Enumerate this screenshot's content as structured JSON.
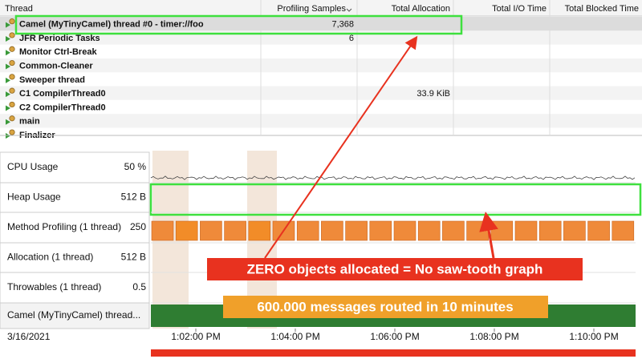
{
  "table": {
    "columns": [
      "Thread",
      "Profiling Samples",
      "Total Allocation",
      "Total I/O Time",
      "Total Blocked Time"
    ],
    "rows": [
      {
        "thread": "Camel (MyTinyCamel) thread #0 - timer://foo",
        "samples": "7,368"
      },
      {
        "thread": "JFR Periodic Tasks",
        "samples": "6"
      },
      {
        "thread": "Monitor Ctrl-Break"
      },
      {
        "thread": "Common-Cleaner"
      },
      {
        "thread": "Sweeper thread"
      },
      {
        "thread": "C1 CompilerThread0",
        "allocation": "33.9 KiB"
      },
      {
        "thread": "C2 CompilerThread0"
      },
      {
        "thread": "main"
      },
      {
        "thread": "Finalizer"
      }
    ]
  },
  "timeline": {
    "lanes": [
      {
        "label": "CPU Usage",
        "scale": "50 %"
      },
      {
        "label": "Heap Usage",
        "scale": "512 B"
      },
      {
        "label": "Method Profiling (1 thread)",
        "scale": "250"
      },
      {
        "label": "Allocation (1 thread)",
        "scale": "512 B"
      },
      {
        "label": "Throwables (1 thread)",
        "scale": "0.5"
      },
      {
        "label": "Camel (MyTinyCamel) thread..."
      }
    ],
    "date": "3/16/2021",
    "time_ticks": [
      "1:02:00 PM",
      "1:04:00 PM",
      "1:06:00 PM",
      "1:08:00 PM",
      "1:10:00 PM"
    ]
  },
  "annotations": {
    "allocation_note": "ZERO objects allocated = No saw-tooth graph",
    "messages_note": "600.000 messages routed in 10 minutes"
  }
}
